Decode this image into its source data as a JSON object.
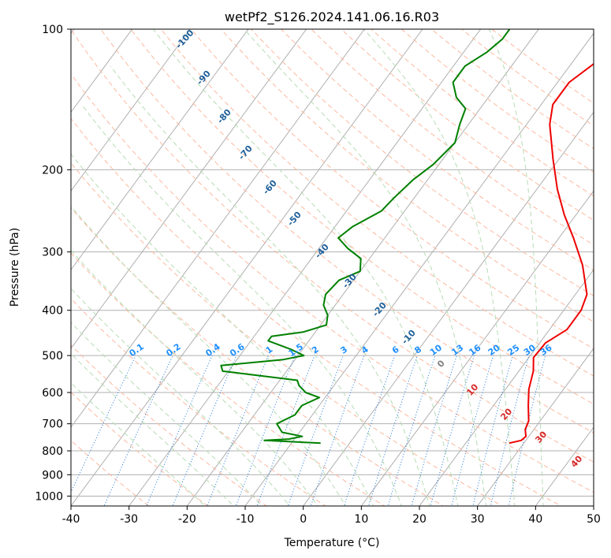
{
  "chart_data": {
    "type": "skew-t",
    "title": "wetPf2_S126.2024.141.06.16.R03",
    "xlabel": "Temperature (°C)",
    "ylabel": "Pressure (hPa)",
    "xlim": [
      -40,
      50
    ],
    "ylim": [
      1050,
      100
    ],
    "y_scale": "log",
    "grid": true,
    "x_ticks": [
      -40,
      -30,
      -20,
      -10,
      0,
      10,
      20,
      30,
      40,
      50
    ],
    "y_ticks": [
      100,
      200,
      300,
      400,
      500,
      600,
      700,
      800,
      900,
      1000
    ],
    "series": [
      {
        "color": "#ee0000",
        "points": [
          {
            "p": 770,
            "t": 27.5
          },
          {
            "p": 760,
            "t": 29.2
          },
          {
            "p": 745,
            "t": 29.5
          },
          {
            "p": 720,
            "t": 28.5
          },
          {
            "p": 690,
            "t": 28.0
          },
          {
            "p": 640,
            "t": 26.0
          },
          {
            "p": 590,
            "t": 24.0
          },
          {
            "p": 540,
            "t": 22.5
          },
          {
            "p": 505,
            "t": 20.8
          },
          {
            "p": 470,
            "t": 21.0
          },
          {
            "p": 440,
            "t": 23.0
          },
          {
            "p": 400,
            "t": 23.0
          },
          {
            "p": 370,
            "t": 22.0
          },
          {
            "p": 320,
            "t": 17.5
          },
          {
            "p": 280,
            "t": 12.5
          },
          {
            "p": 250,
            "t": 8.0
          },
          {
            "p": 220,
            "t": 3.5
          },
          {
            "p": 190,
            "t": -1.0
          },
          {
            "p": 160,
            "t": -6.0
          },
          {
            "p": 145,
            "t": -8.0
          },
          {
            "p": 130,
            "t": -8.0
          },
          {
            "p": 118,
            "t": -6.0
          },
          {
            "p": 108,
            "t": -7.0
          },
          {
            "p": 100,
            "t": -6.5
          }
        ]
      },
      {
        "color": "#008000",
        "points": [
          {
            "p": 770,
            "t": -5.0
          },
          {
            "p": 760,
            "t": -15.0
          },
          {
            "p": 755,
            "t": -11.0
          },
          {
            "p": 745,
            "t": -9.0
          },
          {
            "p": 730,
            "t": -13.0
          },
          {
            "p": 700,
            "t": -15.0
          },
          {
            "p": 670,
            "t": -13.0
          },
          {
            "p": 640,
            "t": -13.0
          },
          {
            "p": 615,
            "t": -11.0
          },
          {
            "p": 600,
            "t": -14.0
          },
          {
            "p": 580,
            "t": -16.0
          },
          {
            "p": 565,
            "t": -17.0
          },
          {
            "p": 540,
            "t": -31.0
          },
          {
            "p": 525,
            "t": -32.0
          },
          {
            "p": 510,
            "t": -22.0
          },
          {
            "p": 500,
            "t": -19.0
          },
          {
            "p": 485,
            "t": -22.0
          },
          {
            "p": 465,
            "t": -27.0
          },
          {
            "p": 455,
            "t": -27.0
          },
          {
            "p": 445,
            "t": -22.0
          },
          {
            "p": 430,
            "t": -19.0
          },
          {
            "p": 410,
            "t": -20.0
          },
          {
            "p": 390,
            "t": -22.0
          },
          {
            "p": 370,
            "t": -23.0
          },
          {
            "p": 345,
            "t": -22.5
          },
          {
            "p": 330,
            "t": -20.0
          },
          {
            "p": 310,
            "t": -21.5
          },
          {
            "p": 295,
            "t": -25.0
          },
          {
            "p": 280,
            "t": -28.0
          },
          {
            "p": 265,
            "t": -27.0
          },
          {
            "p": 245,
            "t": -24.0
          },
          {
            "p": 230,
            "t": -23.5
          },
          {
            "p": 210,
            "t": -22.5
          },
          {
            "p": 195,
            "t": -21.0
          },
          {
            "p": 175,
            "t": -20.0
          },
          {
            "p": 160,
            "t": -21.5
          },
          {
            "p": 148,
            "t": -22.5
          },
          {
            "p": 140,
            "t": -25.5
          },
          {
            "p": 130,
            "t": -28.0
          },
          {
            "p": 120,
            "t": -28.0
          },
          {
            "p": 112,
            "t": -26.0
          },
          {
            "p": 105,
            "t": -25.0
          },
          {
            "p": 100,
            "t": -25.0
          }
        ]
      }
    ],
    "dry_adiabat_labels": [
      "-100",
      "-90",
      "-80",
      "-70",
      "-60",
      "-50",
      "-40",
      "-30",
      "-20",
      "-10",
      "0",
      "10",
      "20",
      "30",
      "40"
    ],
    "mixing_ratio_labels": [
      "0.1",
      "0.2",
      "0.4",
      "0.6",
      "1",
      "1.5",
      "2",
      "3",
      "4",
      "6",
      "8",
      "10",
      "13",
      "16",
      "20",
      "25",
      "30",
      "36"
    ],
    "colors": {
      "isotherm": "#b0b0b0",
      "dry_adiabat": "#fdb9a0",
      "moist_adiabat": "#b7dcb5",
      "mixing_ratio": "#1f77d4",
      "dry_label": "#1f5f9a",
      "warm_label": "#d62728",
      "zero_label": "#808080",
      "mr_label": "#1e90ff"
    }
  }
}
